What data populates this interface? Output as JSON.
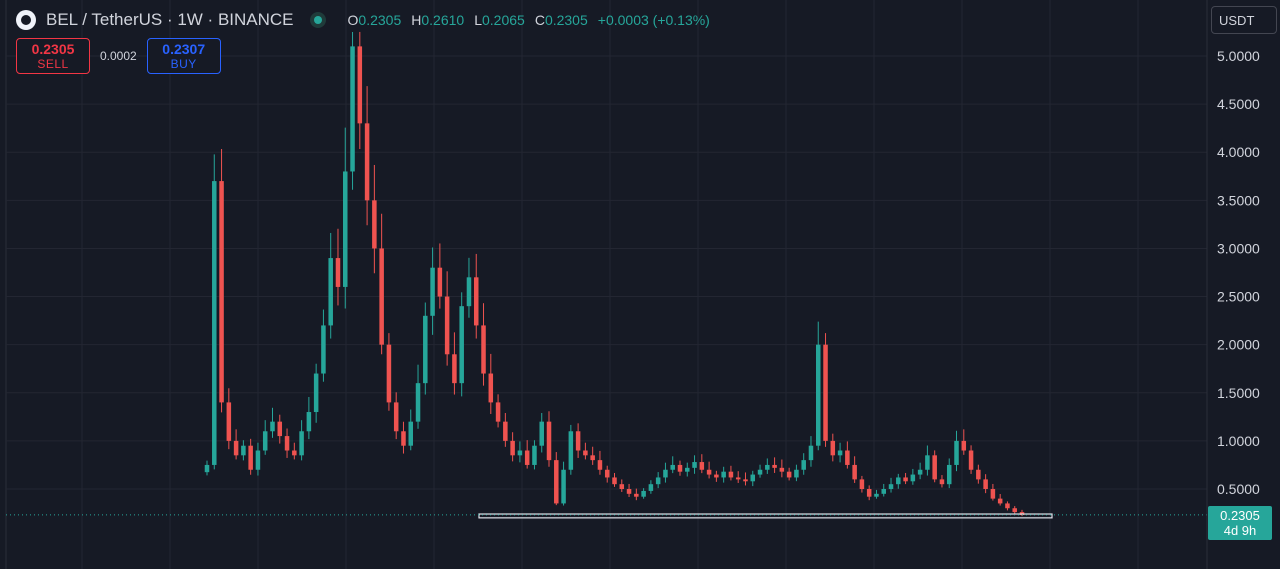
{
  "header": {
    "symbol_title": "BEL / TetherUS · 1W · BINANCE",
    "ohlc": {
      "o_label": "O",
      "o_value": "0.2305",
      "h_label": "H",
      "h_value": "0.2610",
      "l_label": "L",
      "l_value": "0.2065",
      "c_label": "C",
      "c_value": "0.2305",
      "change": "+0.0003 (+0.13%)"
    }
  },
  "trade": {
    "sell_price": "0.2305",
    "sell_label": "SELL",
    "spread": "0.0002",
    "buy_price": "0.2307",
    "buy_label": "BUY"
  },
  "currency_selector": "USDT",
  "last_price_tag": {
    "price": "0.2305",
    "countdown": "4d 9h"
  },
  "colors": {
    "background": "#161a25",
    "up": "#26a69a",
    "down": "#ef5350",
    "grid": "#232632",
    "axis_text": "#d1d4dc"
  },
  "chart_data": {
    "type": "candlestick",
    "interval": "1W",
    "ylim": [
      0.0,
      5.25
    ],
    "y_ticks": [
      "5.0000",
      "4.5000",
      "4.0000",
      "3.5000",
      "3.0000",
      "2.5000",
      "2.0000",
      "1.5000",
      "1.0000",
      "0.5000"
    ],
    "y_tick_values": [
      5.0,
      4.5,
      4.0,
      3.5,
      3.0,
      2.5,
      2.0,
      1.5,
      1.0,
      0.5
    ],
    "last_price": 0.2305,
    "support_level": [
      0.2,
      0.24
    ],
    "closes": [
      0.75,
      3.7,
      1.4,
      1.0,
      0.85,
      0.95,
      0.7,
      0.9,
      1.1,
      1.2,
      1.05,
      0.9,
      0.85,
      1.1,
      1.3,
      1.7,
      2.2,
      2.9,
      2.6,
      3.8,
      5.1,
      4.3,
      3.5,
      3.0,
      2.0,
      1.4,
      1.1,
      0.95,
      1.2,
      1.6,
      2.3,
      2.8,
      2.5,
      1.9,
      1.6,
      2.4,
      2.7,
      2.2,
      1.7,
      1.4,
      1.2,
      1.0,
      0.85,
      0.9,
      0.75,
      0.95,
      1.2,
      0.8,
      0.35,
      0.7,
      1.1,
      0.9,
      0.85,
      0.8,
      0.7,
      0.62,
      0.55,
      0.5,
      0.45,
      0.42,
      0.48,
      0.55,
      0.62,
      0.7,
      0.75,
      0.68,
      0.72,
      0.78,
      0.7,
      0.65,
      0.62,
      0.68,
      0.62,
      0.6,
      0.58,
      0.65,
      0.7,
      0.75,
      0.72,
      0.68,
      0.62,
      0.7,
      0.8,
      0.95,
      2.0,
      1.0,
      0.85,
      0.9,
      0.75,
      0.6,
      0.5,
      0.42,
      0.45,
      0.5,
      0.55,
      0.62,
      0.58,
      0.65,
      0.7,
      0.85,
      0.6,
      0.55,
      0.75,
      1.0,
      0.9,
      0.7,
      0.6,
      0.5,
      0.4,
      0.35,
      0.3,
      0.26,
      0.23
    ]
  }
}
